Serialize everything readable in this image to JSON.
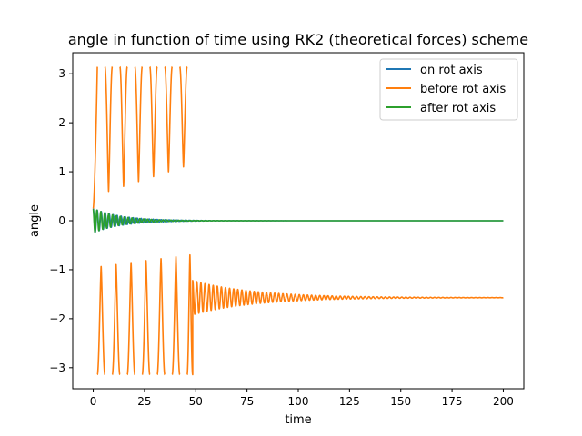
{
  "chart_data": {
    "type": "line",
    "title": "angle in function of time using RK2 (theoretical forces) scheme",
    "xlabel": "time",
    "ylabel": "angle",
    "xlim": [
      -10,
      210
    ],
    "ylim": [
      -3.43,
      3.43
    ],
    "xticks": [
      0,
      25,
      50,
      75,
      100,
      125,
      150,
      175,
      200
    ],
    "yticks": [
      -3,
      -2,
      -1,
      0,
      1,
      2,
      3
    ],
    "grid": false,
    "legend_position": "top-right",
    "series": [
      {
        "name": "on rot axis",
        "color": "#1f77b4",
        "description": "damped oscillation around 0, starting near 0.25, amplitude decaying to ~0 by t≈60, flat at 0 until t=200"
      },
      {
        "name": "before rot axis",
        "color": "#ff7f0e",
        "description": "t 0-48: angle rotates fully, jumping between ±3.14 with 12 wraps and local minima/maxima at about ±0.5..±1.0; t 48-200: damped oscillation around -1.57 with initial amplitude ~0.35 decaying to ~0.01"
      },
      {
        "name": "after rot axis",
        "color": "#2ca02c",
        "description": "damped oscillation around 0 starting near 0.25, amplitude decaying to ~0 by t≈60, flat at 0 until t=200 (drawn on top of the blue series)"
      }
    ]
  }
}
